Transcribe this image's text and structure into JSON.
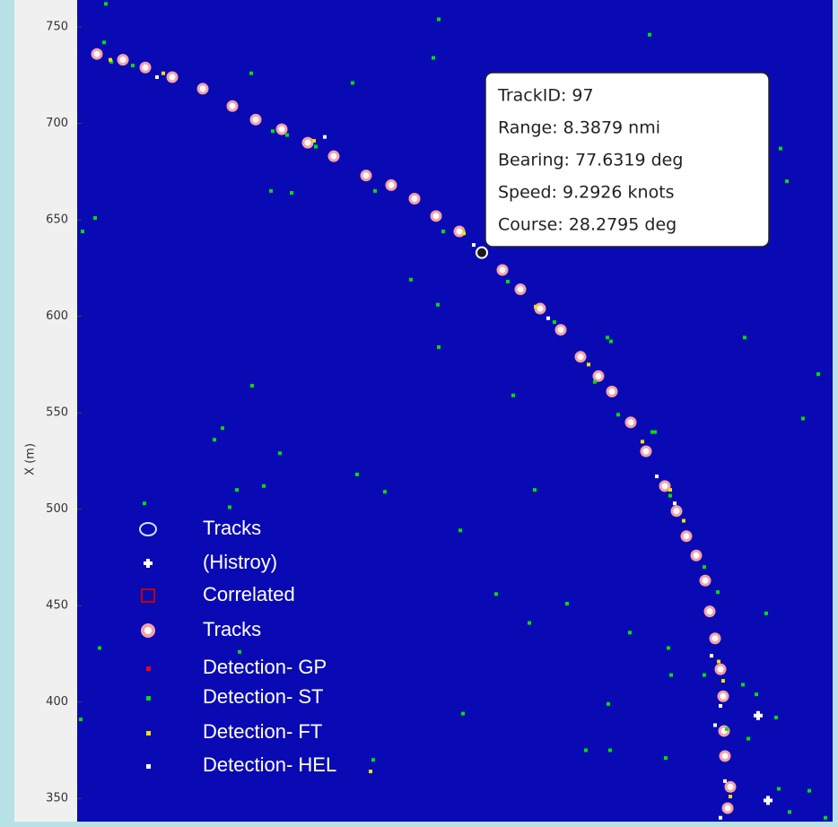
{
  "chart_data": {
    "type": "scatter",
    "ylabel": "X (m)",
    "xlim": [
      0,
      842
    ],
    "ylim": [
      338,
      764
    ],
    "yticks": [
      350,
      400,
      450,
      500,
      550,
      600,
      650,
      700,
      750
    ],
    "background": "#0a0ab4",
    "annotation": [
      "TrackID: 97",
      "Range: 8.3879 nmi",
      "Bearing: 77.6319 deg",
      "Speed: 9.2926 knots",
      "Course: 28.2795 deg"
    ],
    "series": [
      {
        "name": "Tracks",
        "marker": "selected",
        "color": "#1a1a1a",
        "x": [
          451
        ],
        "values": [
          633
        ]
      },
      {
        "name": "(Histroy)",
        "marker": "plus",
        "color": "#ffffff",
        "x": [
          759,
          770
        ],
        "values": [
          393,
          349
        ]
      },
      {
        "name": "Correlated",
        "marker": "square",
        "color": "#c00000",
        "x": [],
        "values": []
      },
      {
        "name": "Tracks",
        "marker": "ring",
        "color": "#f4a0a8",
        "x": [
          22,
          51,
          76,
          106,
          140,
          173,
          199,
          228,
          257,
          286,
          322,
          350,
          376,
          400,
          426,
          474,
          494,
          516,
          539,
          561,
          581,
          596,
          617,
          634,
          655,
          668,
          679,
          690,
          700,
          705,
          711,
          717,
          720,
          721,
          722,
          728,
          725
        ],
        "values": [
          736,
          733,
          729,
          724,
          718,
          709,
          702,
          697,
          690,
          683,
          673,
          668,
          661,
          652,
          644,
          624,
          614,
          604,
          593,
          579,
          569,
          561,
          545,
          530,
          512,
          499,
          486,
          476,
          463,
          447,
          433,
          417,
          403,
          385,
          372,
          356,
          345
        ]
      },
      {
        "name": "Detection- GP",
        "marker": "dot",
        "color": "#ff0000",
        "x": [],
        "values": []
      },
      {
        "name": "Detection- ST",
        "marker": "dot",
        "color": "#00e000",
        "x": [
          32,
          30,
          403,
          638,
          20,
          6,
          194,
          307,
          397,
          216,
          239,
          372,
          402,
          403,
          195,
          162,
          153,
          226,
          178,
          208,
          312,
          170,
          75,
          343,
          510,
          427,
          467,
          546,
          504,
          181,
          25,
          4,
          430,
          592,
          616,
          659,
          768,
          784,
          791,
          744,
          826,
          809,
          591,
          595,
          486,
          641,
          594,
          656,
          816,
          834,
          794,
          782,
          779,
          748,
          757,
          742,
          567,
          330,
          699,
          714,
          662,
          38,
          62,
          218,
          234,
          266,
          332,
          408,
          480,
          532,
          577,
          603,
          644,
          661,
          699,
          724
        ],
        "values": [
          762,
          742,
          754,
          746,
          651,
          644,
          726,
          721,
          734,
          665,
          664,
          619,
          606,
          584,
          564,
          542,
          536,
          529,
          510,
          512,
          518,
          501,
          503,
          509,
          510,
          489,
          456,
          451,
          441,
          426,
          428,
          391,
          394,
          399,
          436,
          428,
          446,
          687,
          670,
          589,
          570,
          547,
          589,
          587,
          559,
          540,
          375,
          371,
          354,
          340,
          343,
          355,
          392,
          381,
          404,
          409,
          375,
          370,
          414,
          457,
          414,
          732,
          730,
          696,
          694,
          688,
          665,
          644,
          618,
          597,
          566,
          549,
          540,
          507,
          470,
          386
        ]
      },
      {
        "name": "Detection- FT",
        "marker": "dot",
        "color": "#f0e000",
        "x": [
          37,
          96,
          264,
          431,
          511,
          570,
          630,
          661,
          676,
          715,
          720,
          728,
          327
        ],
        "values": [
          733,
          726,
          691,
          643,
          605,
          575,
          535,
          510,
          494,
          421,
          411,
          351,
          364
        ]
      },
      {
        "name": "Detection- HEL",
        "marker": "dot",
        "color": "#ffffff",
        "x": [
          89,
          276,
          442,
          525,
          646,
          666,
          707,
          717,
          711,
          722,
          717
        ],
        "values": [
          724,
          693,
          637,
          599,
          517,
          503,
          424,
          398,
          388,
          359,
          340
        ]
      }
    ]
  }
}
